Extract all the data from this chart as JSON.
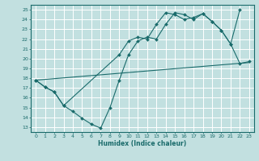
{
  "xlabel": "Humidex (Indice chaleur)",
  "bg_color": "#c2e0e0",
  "grid_color": "#ffffff",
  "line_color": "#1a6b6b",
  "xlim": [
    -0.5,
    23.5
  ],
  "ylim": [
    12.5,
    25.5
  ],
  "xticks": [
    0,
    1,
    2,
    3,
    4,
    5,
    6,
    7,
    8,
    9,
    10,
    11,
    12,
    13,
    14,
    15,
    16,
    17,
    18,
    19,
    20,
    21,
    22,
    23
  ],
  "yticks": [
    13,
    14,
    15,
    16,
    17,
    18,
    19,
    20,
    21,
    22,
    23,
    24,
    25
  ],
  "line1_x": [
    0,
    1,
    2,
    3,
    9,
    10,
    11,
    12,
    13,
    14,
    15,
    16,
    17,
    18,
    19,
    20,
    21,
    22
  ],
  "line1_y": [
    17.8,
    17.1,
    16.6,
    15.2,
    20.4,
    21.8,
    22.2,
    22.0,
    23.5,
    24.7,
    24.5,
    24.0,
    24.2,
    24.6,
    23.8,
    22.9,
    21.5,
    25.0
  ],
  "line2_x": [
    0,
    23
  ],
  "line2_y": [
    17.8,
    19.6
  ],
  "line3_x": [
    0,
    1,
    2,
    3,
    4,
    5,
    6,
    7,
    8,
    9,
    10,
    11,
    12,
    13,
    14,
    15,
    16,
    17,
    18,
    19,
    20,
    21,
    22,
    23
  ],
  "line3_y": [
    17.8,
    17.1,
    16.6,
    15.2,
    14.6,
    13.9,
    13.3,
    12.9,
    15.0,
    17.8,
    20.4,
    21.8,
    22.2,
    22.0,
    23.5,
    24.7,
    24.5,
    24.0,
    24.6,
    23.8,
    22.9,
    21.5,
    19.5,
    19.7
  ]
}
